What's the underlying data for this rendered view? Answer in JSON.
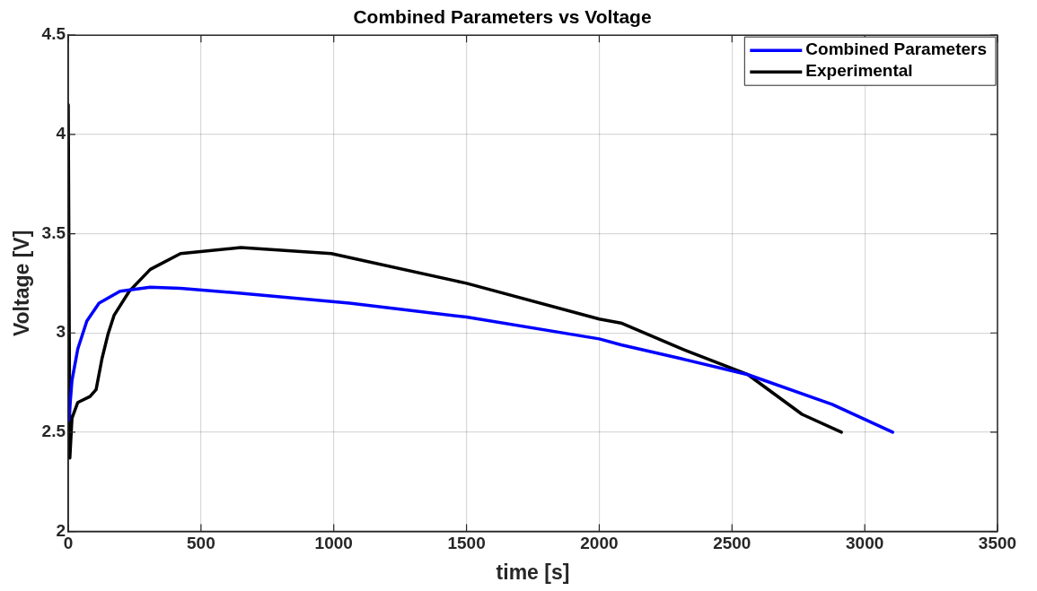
{
  "chart_data": {
    "type": "line",
    "title": "Combined Parameters vs Voltage",
    "xlabel": "time [s]",
    "ylabel": "Voltage [V]",
    "xlim": [
      0,
      3500
    ],
    "xticks": [
      0,
      500,
      1000,
      1500,
      2000,
      2500,
      3000,
      3500
    ],
    "ylim": [
      2,
      4.5
    ],
    "yticks": [
      2,
      2.5,
      3,
      3.5,
      4,
      4.5
    ],
    "grid": true,
    "legend": "top right",
    "marker": "none",
    "line_style": "solid",
    "series": [
      {
        "name": "Combined Parameters",
        "color": "#0000ff",
        "x": [
          2,
          14,
          36,
          70,
          116,
          195,
          309,
          423,
          650,
          1059,
          1500,
          2000,
          2082,
          2310,
          2560,
          2877,
          3105
        ],
        "values": [
          2.56,
          2.76,
          2.92,
          3.06,
          3.15,
          3.21,
          3.23,
          3.225,
          3.2,
          3.15,
          3.08,
          2.97,
          2.94,
          2.87,
          2.79,
          2.64,
          2.5
        ]
      },
      {
        "name": "Experimental",
        "color": "#000000",
        "x": [
          0,
          6,
          14,
          36,
          82,
          105,
          127,
          150,
          173,
          230,
          309,
          423,
          650,
          991,
          1500,
          2000,
          2082,
          2310,
          2560,
          2764,
          2912
        ],
        "values": [
          4.15,
          2.37,
          2.57,
          2.65,
          2.68,
          2.715,
          2.87,
          2.995,
          3.09,
          3.21,
          3.32,
          3.4,
          3.43,
          3.4,
          3.25,
          3.07,
          3.05,
          2.92,
          2.79,
          2.59,
          2.5
        ]
      }
    ]
  }
}
